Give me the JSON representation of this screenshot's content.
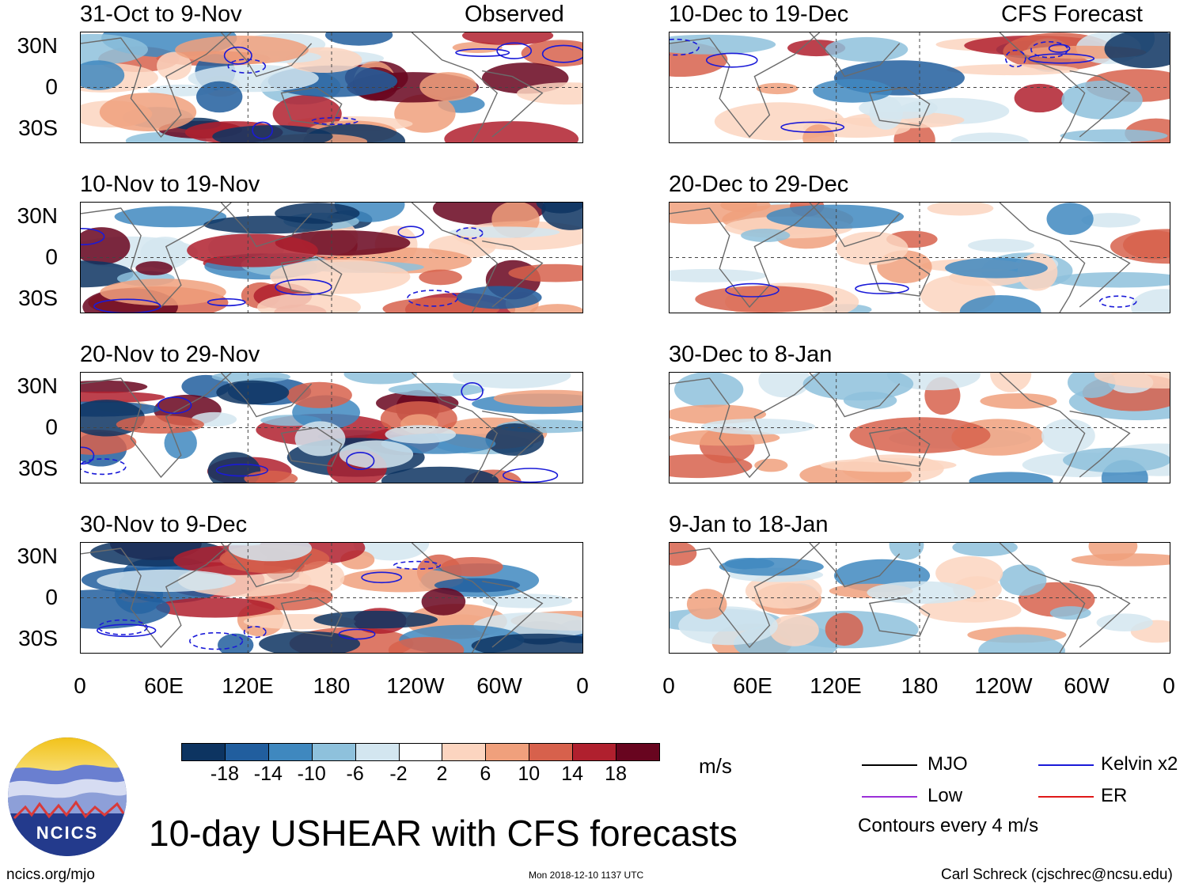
{
  "figure": {
    "title": "10-day USHEAR with CFS forecasts",
    "left_header": "Observed",
    "right_header": "CFS Forecast",
    "website": "ncics.org/mjo",
    "timestamp": "Mon 2018-12-10 1137 UTC",
    "author": "Carl Schreck (cjschrec@ncsu.edu)",
    "logo_text": "NCICS",
    "units": "m/s",
    "contour_note": "Contours every 4 m/s"
  },
  "axes": {
    "lat_labels": [
      "30N",
      "0",
      "30S"
    ],
    "lon_labels": [
      "0",
      "60E",
      "120E",
      "180",
      "120W",
      "60W",
      "0"
    ]
  },
  "panels": {
    "observed": [
      {
        "period": "31-Oct to 9-Nov"
      },
      {
        "period": "10-Nov to 19-Nov"
      },
      {
        "period": "20-Nov to 29-Nov"
      },
      {
        "period": "30-Nov to 9-Dec"
      }
    ],
    "forecast": [
      {
        "period": "10-Dec to 19-Dec"
      },
      {
        "period": "20-Dec to 29-Dec"
      },
      {
        "period": "30-Dec to 8-Jan"
      },
      {
        "period": "9-Jan to 18-Jan"
      }
    ]
  },
  "colorbar": {
    "ticks": [
      "-18",
      "-14",
      "-10",
      "-6",
      "-2",
      "2",
      "6",
      "10",
      "14",
      "18"
    ],
    "colors": [
      "#0d3461",
      "#215e9e",
      "#3f88bf",
      "#8ec1dc",
      "#d3e6f0",
      "#ffffff",
      "#fcd5c0",
      "#f0a07c",
      "#d7614c",
      "#b0202e",
      "#68051f"
    ]
  },
  "legend": [
    {
      "label": "MJO",
      "color": "#000000"
    },
    {
      "label": "Kelvin x2",
      "color": "#1a1ad8"
    },
    {
      "label": "Low",
      "color": "#9b30d8"
    },
    {
      "label": "ER",
      "color": "#e01818"
    }
  ]
}
